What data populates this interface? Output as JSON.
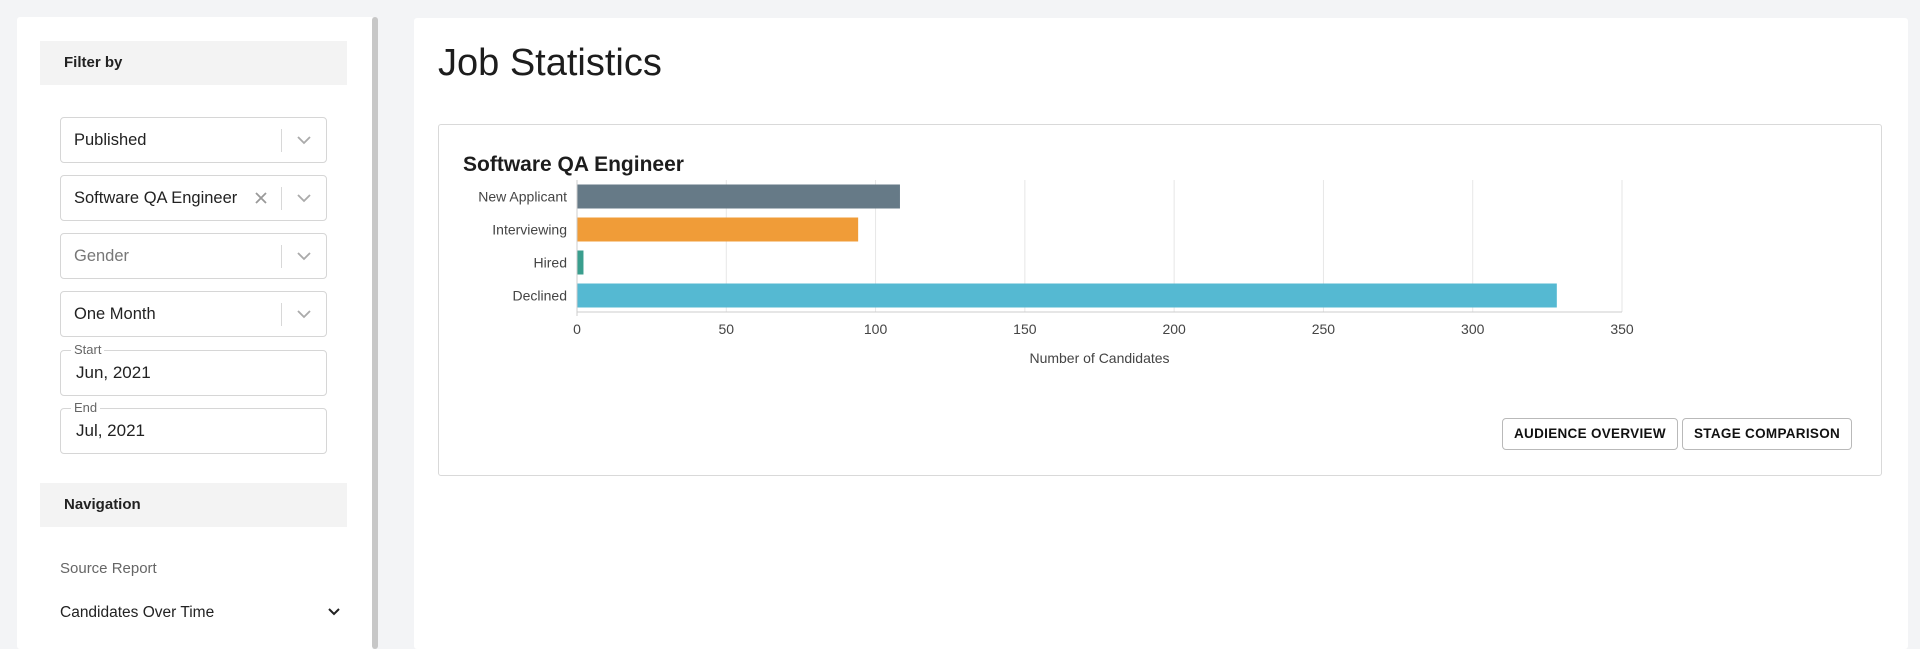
{
  "sidebar": {
    "filter_header": "Filter by",
    "filters": {
      "status": {
        "value": "Published"
      },
      "job": {
        "value": "Software QA Engineer"
      },
      "gender": {
        "placeholder": "Gender"
      },
      "period": {
        "value": "One Month"
      }
    },
    "start": {
      "label": "Start",
      "value": "Jun, 2021"
    },
    "end": {
      "label": "End",
      "value": "Jul, 2021"
    },
    "navigation_header": "Navigation",
    "nav_items": [
      {
        "label": "Source Report"
      },
      {
        "label": "Candidates Over Time"
      }
    ]
  },
  "main": {
    "title": "Job Statistics",
    "card_title": "Software QA Engineer",
    "buttons": {
      "audience_overview": "AUDIENCE OVERVIEW",
      "stage_comparison": "STAGE COMPARISON"
    }
  },
  "chart_data": {
    "type": "bar",
    "orientation": "horizontal",
    "title": "Software QA Engineer",
    "categories": [
      "New Applicant",
      "Interviewing",
      "Hired",
      "Declined"
    ],
    "values": [
      108,
      94,
      2,
      328
    ],
    "colors": [
      "#667a87",
      "#f09c38",
      "#3a9e8e",
      "#55b9d2"
    ],
    "xlabel": "Number of Candidates",
    "ylabel": "",
    "xlim": [
      0,
      350
    ],
    "xticks": [
      0,
      50,
      100,
      150,
      200,
      250,
      300,
      350
    ],
    "grid": true,
    "legend": "none"
  }
}
